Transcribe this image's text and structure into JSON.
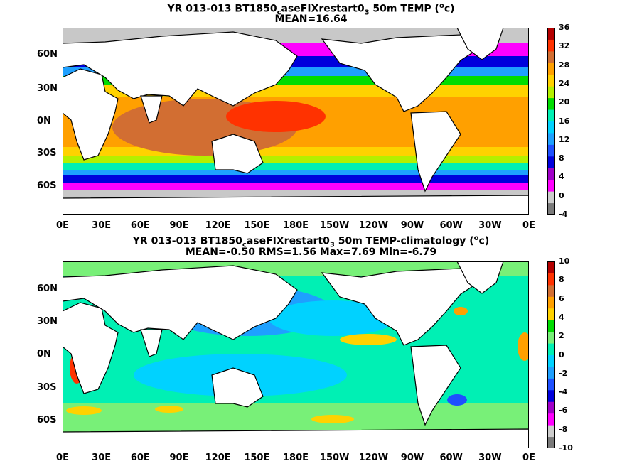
{
  "panels": [
    {
      "title_line1": {
        "a": "YR 013-013 BT1850",
        "sub": "c",
        "b": "aseFIXrestart0",
        "sub2": "3",
        "c": " 50m TEMP (",
        "sup": "o",
        "d": "c)"
      },
      "title_line2": "MEAN=16.64",
      "colorbar_ticks": [
        "36",
        "32",
        "28",
        "24",
        "20",
        "16",
        "12",
        "8",
        "4",
        "0",
        "-4"
      ],
      "colorbar_colors": [
        "#7a7a7a",
        "#cccccc",
        "#ff00ff",
        "#a000c8",
        "#0000dc",
        "#1e50ff",
        "#1ea0ff",
        "#00d2ff",
        "#00f0b4",
        "#00dc00",
        "#b4f000",
        "#ffd200",
        "#ffa000",
        "#d26e32",
        "#ff3200",
        "#b40000"
      ]
    },
    {
      "title_line1": {
        "a": "YR 013-013 BT1850",
        "sub": "c",
        "b": "aseFIXrestart0",
        "sub2": "3",
        "c": " 50m TEMP-climatology (",
        "sup": "o",
        "d": "c)"
      },
      "title_line2": "MEAN=-0.50   RMS=1.56   Max=7.69   Min=-6.79",
      "colorbar_ticks": [
        "10",
        "8",
        "6",
        "4",
        "2",
        "0",
        "-2",
        "-4",
        "-6",
        "-8",
        "-10"
      ],
      "colorbar_colors": [
        "#7a7a7a",
        "#cccccc",
        "#ff00ff",
        "#a000c8",
        "#0000dc",
        "#1e50ff",
        "#1ea0ff",
        "#00d2ff",
        "#00f0b4",
        "#78f078",
        "#00dc00",
        "#ffd200",
        "#ffa000",
        "#d26e32",
        "#ff3200",
        "#b40000"
      ]
    }
  ],
  "lat_labels": [
    "60N",
    "30N",
    "0N",
    "30S",
    "60S"
  ],
  "lon_labels": [
    "0E",
    "30E",
    "60E",
    "90E",
    "120E",
    "150E",
    "180E",
    "150W",
    "120W",
    "90W",
    "60W",
    "30W",
    "0E"
  ],
  "colors": {
    "land": "#ffffff",
    "coast": "#000000",
    "seaice": "#c8c8c8"
  }
}
